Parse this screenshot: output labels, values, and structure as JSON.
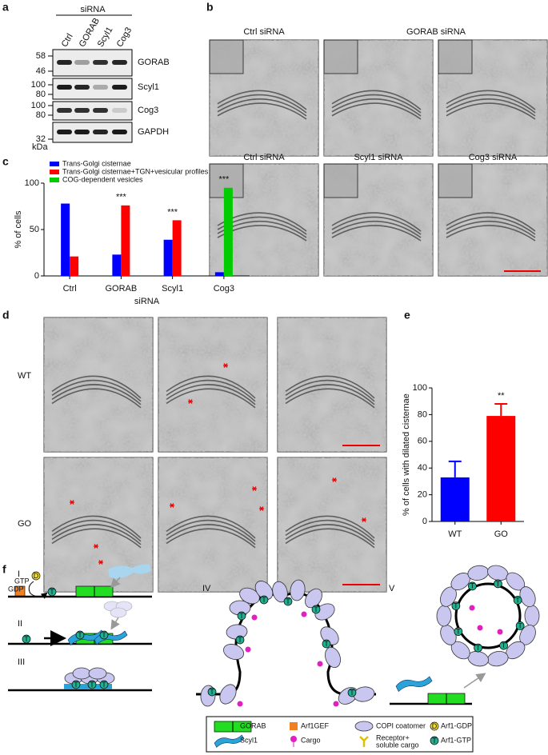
{
  "panel_labels": [
    "a",
    "b",
    "c",
    "d",
    "e",
    "f"
  ],
  "blot": {
    "group_label": "siRNA",
    "lanes": [
      "Ctrl",
      "GORAB",
      "Scyl1",
      "Cog3"
    ],
    "proteins": [
      "GORAB",
      "Scyl1",
      "Cog3",
      "GAPDH"
    ],
    "mw_markers": [
      "58",
      "46",
      "100",
      "80",
      "100",
      "80",
      "32"
    ],
    "mw_unit": "kDa"
  },
  "em_b": {
    "row1_labels": [
      "Ctrl siRNA",
      "GORAB siRNA"
    ],
    "row2_labels": [
      "Ctrl siRNA",
      "Scyl1 siRNA",
      "Cog3 siRNA"
    ]
  },
  "em_d": {
    "row_labels": [
      "WT",
      "GO"
    ]
  },
  "chart_data": [
    {
      "type": "bar",
      "xlabel": "siRNA",
      "ylabel": "% of cells",
      "categories": [
        "Ctrl",
        "GORAB",
        "Scyl1",
        "Cog3"
      ],
      "series": [
        {
          "name": "Trans-Golgi cisternae",
          "color": "#0000ff",
          "values": [
            78,
            23,
            39,
            4
          ]
        },
        {
          "name": "Trans-Golgi cisternae+TGN+vesicular profiles",
          "color": "#ff0000",
          "values": [
            21,
            76,
            60,
            null
          ]
        },
        {
          "name": "COG-dependent vesicles",
          "color": "#00cc00",
          "values": [
            null,
            null,
            null,
            95
          ]
        }
      ],
      "annotations": [
        null,
        "***",
        "***",
        "***"
      ],
      "ylim": [
        0,
        100
      ],
      "yticks": [
        0,
        50,
        100
      ],
      "legend": "top-left"
    },
    {
      "type": "bar",
      "ylabel": "% of cells with dilated cisternae",
      "categories": [
        "WT",
        "GO"
      ],
      "values": [
        33,
        79
      ],
      "errors": [
        12,
        9
      ],
      "colors": [
        "#0000ff",
        "#ff0000"
      ],
      "annotations": [
        null,
        "**"
      ],
      "ylim": [
        0,
        100
      ],
      "yticks": [
        0,
        20,
        40,
        60,
        80,
        100
      ]
    }
  ],
  "model": {
    "steps": [
      "I",
      "II",
      "III",
      "IV",
      "V"
    ],
    "nucleotides": [
      "GTP",
      "GDP"
    ],
    "legend": [
      {
        "label": "GORAB"
      },
      {
        "label": "Arf1GEF"
      },
      {
        "label": "COPI coatomer"
      },
      {
        "label": "Arf1-GDP",
        "icon": "D"
      },
      {
        "label": "Scyl1"
      },
      {
        "label": "Cargo"
      },
      {
        "label": [
          "Receptor+",
          "soluble cargo"
        ]
      },
      {
        "label": "Arf1-GTP",
        "icon": "T"
      }
    ]
  }
}
